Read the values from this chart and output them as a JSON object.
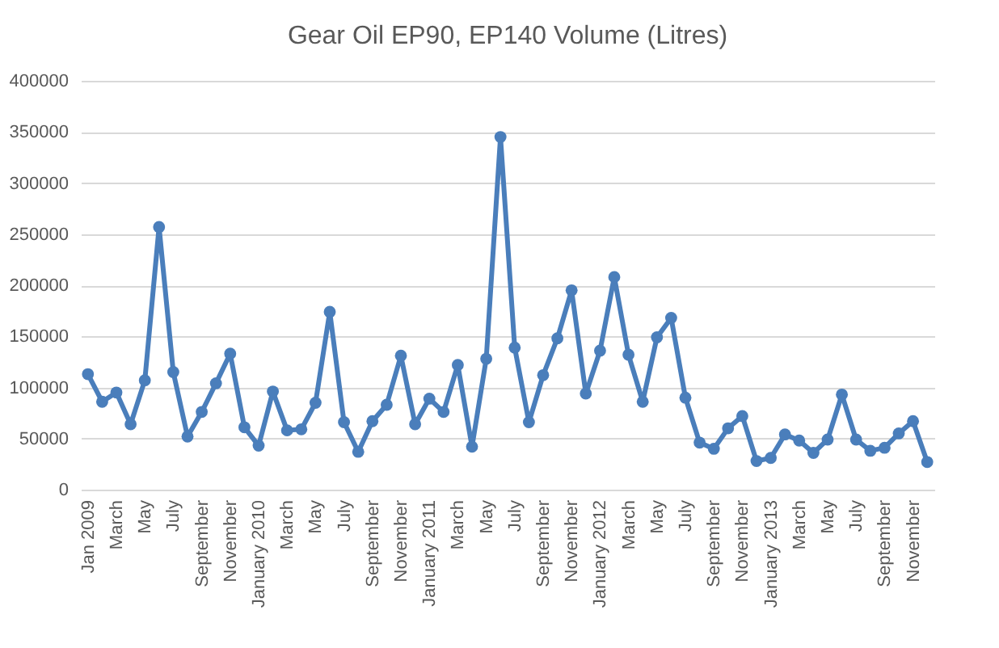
{
  "chart_data": {
    "type": "line",
    "title": "Gear Oil EP90, EP140 Volume (Litres)",
    "categories": [
      "Jan 2009",
      null,
      "March",
      null,
      "May",
      null,
      "July",
      null,
      "September",
      null,
      "November",
      null,
      "January 2010",
      null,
      "March",
      null,
      "May",
      null,
      "July",
      null,
      "September",
      null,
      "November",
      null,
      "January 2011",
      null,
      "March",
      null,
      "May",
      null,
      "July",
      null,
      "September",
      null,
      "November",
      null,
      "January 2012",
      null,
      "March",
      null,
      "May",
      null,
      "July",
      null,
      "September",
      null,
      "November",
      null,
      "January 2013",
      null,
      "March",
      null,
      "May",
      null,
      "July",
      null,
      "September",
      null,
      "November",
      null
    ],
    "series": [
      {
        "color": "#4a7ebb",
        "values": [
          113000,
          86000,
          95000,
          64000,
          107000,
          257000,
          115000,
          52000,
          76000,
          104000,
          133000,
          61000,
          43000,
          96000,
          58000,
          59000,
          85000,
          174000,
          66000,
          37000,
          67000,
          83000,
          131000,
          64000,
          89000,
          76000,
          122000,
          42000,
          128000,
          345000,
          139000,
          66000,
          112000,
          148000,
          195000,
          94000,
          136000,
          208000,
          132000,
          86000,
          149000,
          168000,
          90000,
          46000,
          40000,
          60000,
          72000,
          28000,
          31000,
          54000,
          48000,
          36000,
          49000,
          93000,
          49000,
          38000,
          41000,
          55000,
          67000,
          27000
        ]
      }
    ],
    "ylim": [
      0,
      400000
    ],
    "yticks": [
      0,
      50000,
      100000,
      150000,
      200000,
      250000,
      300000,
      350000,
      400000
    ],
    "grid": "y",
    "marker": "circle",
    "line_style": "solid"
  }
}
